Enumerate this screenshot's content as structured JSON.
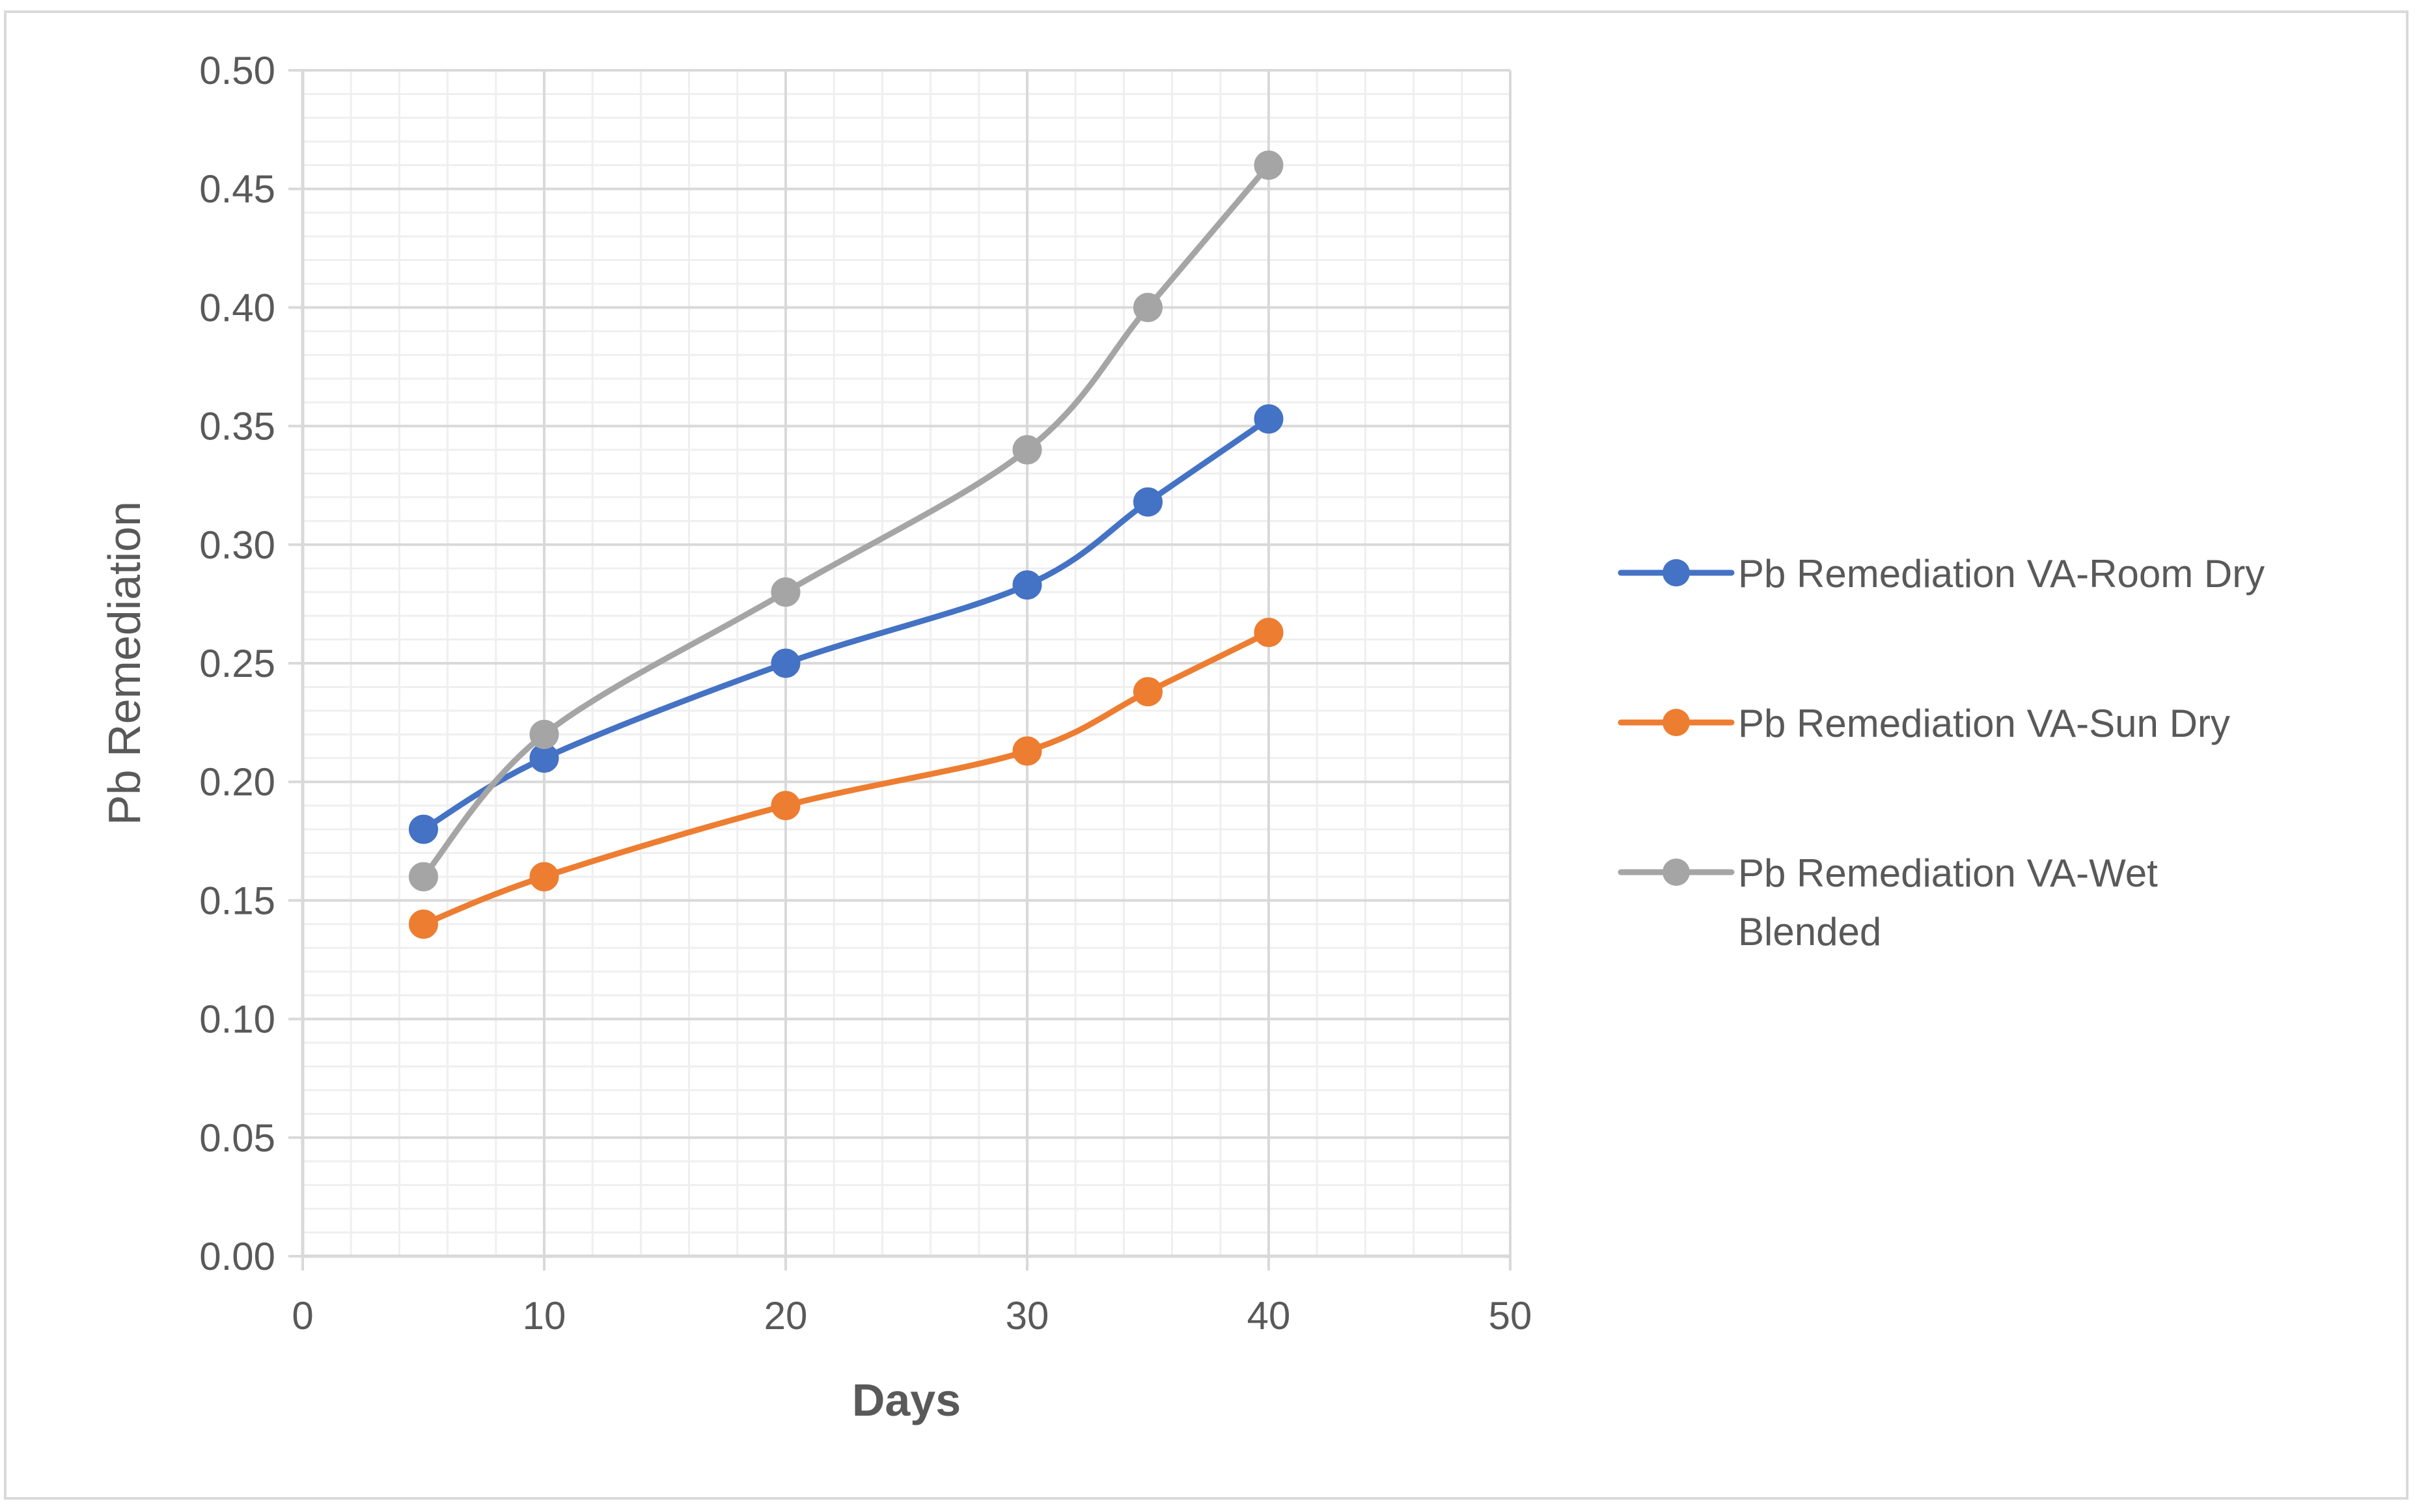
{
  "chart_data": {
    "type": "line",
    "title": "",
    "xlabel": "Days",
    "ylabel": "Pb Remediation",
    "xlim": [
      0,
      50
    ],
    "ylim": [
      0,
      0.5
    ],
    "x_ticks": [
      "0",
      "10",
      "20",
      "30",
      "40",
      "50"
    ],
    "y_ticks": [
      "0.00",
      "0.05",
      "0.10",
      "0.15",
      "0.20",
      "0.25",
      "0.30",
      "0.35",
      "0.40",
      "0.45",
      "0.50"
    ],
    "grid": true,
    "smooth": true,
    "legend_position": "right",
    "x": [
      5,
      10,
      20,
      30,
      35,
      40
    ],
    "series": [
      {
        "name": "Pb Remediation VA-Room Dry",
        "legend_lines": [
          "Pb Remediation VA-Room Dry"
        ],
        "color": "#4472C4",
        "values": [
          0.18,
          0.21,
          0.25,
          0.283,
          0.318,
          0.353
        ]
      },
      {
        "name": "Pb Remediation VA-Sun Dry",
        "legend_lines": [
          "Pb Remediation VA-Sun Dry"
        ],
        "color": "#ED7D31",
        "values": [
          0.14,
          0.16,
          0.19,
          0.213,
          0.238,
          0.263
        ]
      },
      {
        "name": "Pb Remediation VA-Wet Blended",
        "legend_lines": [
          "Pb Remediation VA-Wet",
          "Blended"
        ],
        "color": "#A5A5A5",
        "values": [
          0.16,
          0.22,
          0.28,
          0.34,
          0.4,
          0.46
        ]
      }
    ]
  }
}
